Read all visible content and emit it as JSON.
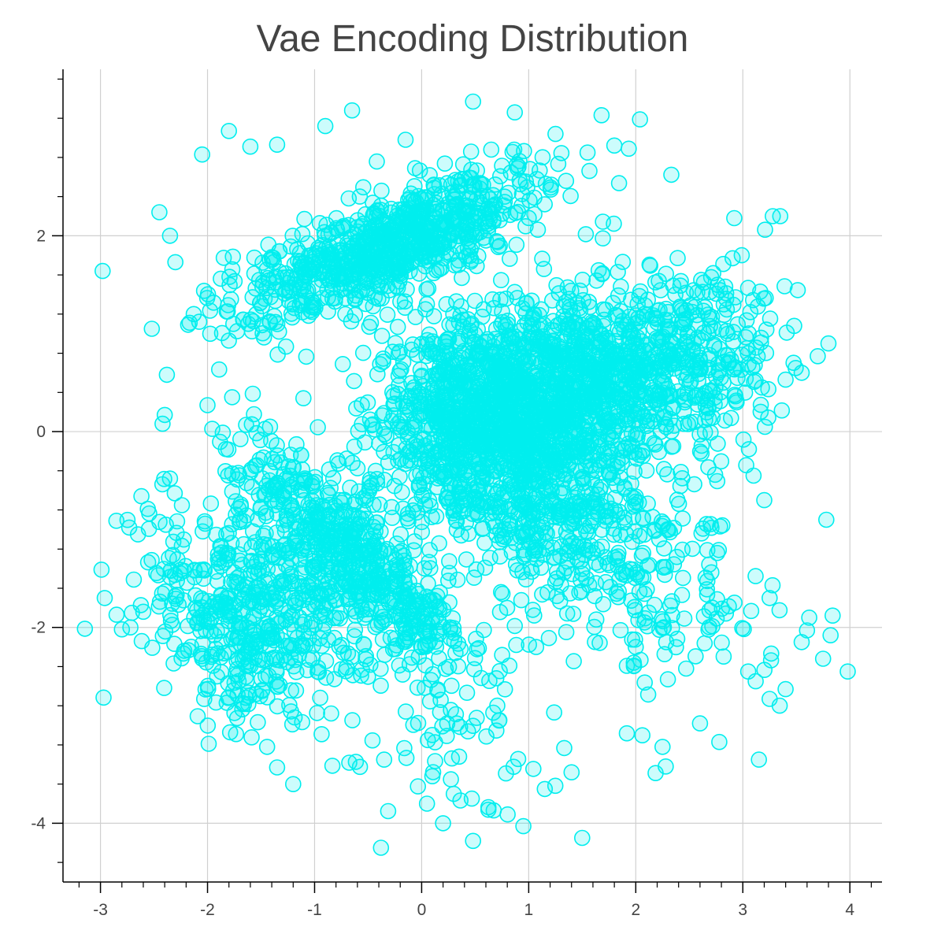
{
  "chart_data": {
    "type": "scatter",
    "title": "Vae Encoding Distribution",
    "xlabel": "",
    "ylabel": "",
    "xlim": [
      -3.35,
      4.3
    ],
    "ylim": [
      -4.6,
      3.7
    ],
    "grid": true,
    "marker": {
      "shape": "circle",
      "color": "#00eeee",
      "fill_opacity": 0.2
    },
    "x_ticks": [
      {
        "value": -3,
        "label": "-3"
      },
      {
        "value": -2,
        "label": "-2"
      },
      {
        "value": -1,
        "label": "-1"
      },
      {
        "value": 0,
        "label": "0"
      },
      {
        "value": 1,
        "label": "1"
      },
      {
        "value": 2,
        "label": "2"
      },
      {
        "value": 3,
        "label": "3"
      },
      {
        "value": 4,
        "label": "4"
      }
    ],
    "y_ticks": [
      {
        "value": -4,
        "label": "-4"
      },
      {
        "value": -2,
        "label": "-2"
      },
      {
        "value": 0,
        "label": "0"
      },
      {
        "value": 2,
        "label": "2"
      }
    ],
    "clusters": [
      {
        "cx": 0.75,
        "cy": 0.15,
        "sx": 0.55,
        "sy": 0.55,
        "rot": 0.25,
        "n": 1400
      },
      {
        "cx": 1.75,
        "cy": 0.6,
        "sx": 0.55,
        "sy": 0.5,
        "rot": 0.2,
        "n": 550
      },
      {
        "cx": -0.3,
        "cy": 1.9,
        "sx": 0.8,
        "sy": 0.22,
        "rot": 0.42,
        "n": 800
      },
      {
        "cx": -0.6,
        "cy": -1.3,
        "sx": 0.75,
        "sy": 0.22,
        "rot": -0.85,
        "n": 500
      },
      {
        "cx": -1.45,
        "cy": -1.75,
        "sx": 0.55,
        "sy": 0.6,
        "rot": 0.0,
        "n": 600
      },
      {
        "cx": 1.35,
        "cy": -1.0,
        "sx": 0.6,
        "sy": 0.45,
        "rot": -0.3,
        "n": 320
      },
      {
        "cx": 2.5,
        "cy": 0.8,
        "sx": 0.45,
        "sy": 0.45,
        "rot": 0.0,
        "n": 220
      },
      {
        "cx": 2.4,
        "cy": -1.7,
        "sx": 0.55,
        "sy": 0.5,
        "rot": 0.0,
        "n": 90
      },
      {
        "cx": 0.2,
        "cy": -3.1,
        "sx": 0.55,
        "sy": 0.5,
        "rot": 0.0,
        "n": 60
      }
    ],
    "points": [
      [
        -2.98,
        1.64
      ],
      [
        -2.99,
        -1.41
      ],
      [
        -2.96,
        -1.7
      ],
      [
        -2.85,
        -1.87
      ],
      [
        -2.8,
        -2.02
      ],
      [
        -2.72,
        -2.0
      ],
      [
        -2.65,
        -1.05
      ],
      [
        -2.6,
        -1.84
      ],
      [
        -2.52,
        1.05
      ],
      [
        -2.45,
        2.24
      ],
      [
        -2.42,
        0.08
      ],
      [
        -2.4,
        0.17
      ],
      [
        -2.38,
        0.58
      ],
      [
        -2.35,
        2.0
      ],
      [
        -2.3,
        1.73
      ],
      [
        -2.05,
        2.83
      ],
      [
        -2.0,
        0.27
      ],
      [
        -1.8,
        3.07
      ],
      [
        -1.6,
        2.91
      ],
      [
        -1.35,
        2.93
      ],
      [
        -1.35,
        -3.43
      ],
      [
        -1.2,
        -3.6
      ],
      [
        -0.9,
        3.12
      ],
      [
        -0.65,
        3.28
      ],
      [
        -0.38,
        -4.25
      ],
      [
        -0.35,
        -3.35
      ],
      [
        -0.15,
        2.98
      ],
      [
        0.05,
        -3.8
      ],
      [
        0.1,
        -3.52
      ],
      [
        0.2,
        -4.0
      ],
      [
        0.3,
        -3.7
      ],
      [
        0.48,
        3.37
      ],
      [
        0.48,
        -4.18
      ],
      [
        0.65,
        2.88
      ],
      [
        0.87,
        3.26
      ],
      [
        0.95,
        -4.03
      ],
      [
        1.15,
        -3.65
      ],
      [
        1.25,
        3.04
      ],
      [
        1.4,
        -3.48
      ],
      [
        1.5,
        -4.15
      ],
      [
        1.55,
        2.85
      ],
      [
        2.0,
        -2.2
      ],
      [
        2.25,
        -3.22
      ],
      [
        2.28,
        -3.42
      ],
      [
        2.3,
        -2.53
      ],
      [
        2.6,
        -2.98
      ],
      [
        2.78,
        -3.17
      ],
      [
        2.92,
        2.18
      ],
      [
        3.05,
        -2.45
      ],
      [
        3.12,
        -2.55
      ],
      [
        3.15,
        -3.35
      ],
      [
        3.25,
        -2.73
      ],
      [
        3.28,
        2.2
      ],
      [
        3.35,
        2.2
      ],
      [
        3.4,
        0.53
      ],
      [
        3.48,
        1.08
      ],
      [
        3.55,
        0.6
      ],
      [
        3.62,
        -1.9
      ],
      [
        3.7,
        0.77
      ],
      [
        3.78,
        -0.9
      ],
      [
        3.8,
        0.9
      ],
      [
        3.82,
        -2.08
      ],
      [
        3.98,
        -2.45
      ],
      [
        3.4,
        -2.63
      ],
      [
        3.6,
        -2.03
      ],
      [
        3.75,
        -2.32
      ],
      [
        3.2,
        -0.7
      ],
      [
        3.55,
        -2.15
      ],
      [
        3.25,
        -1.7
      ],
      [
        3.1,
        -0.45
      ]
    ]
  }
}
